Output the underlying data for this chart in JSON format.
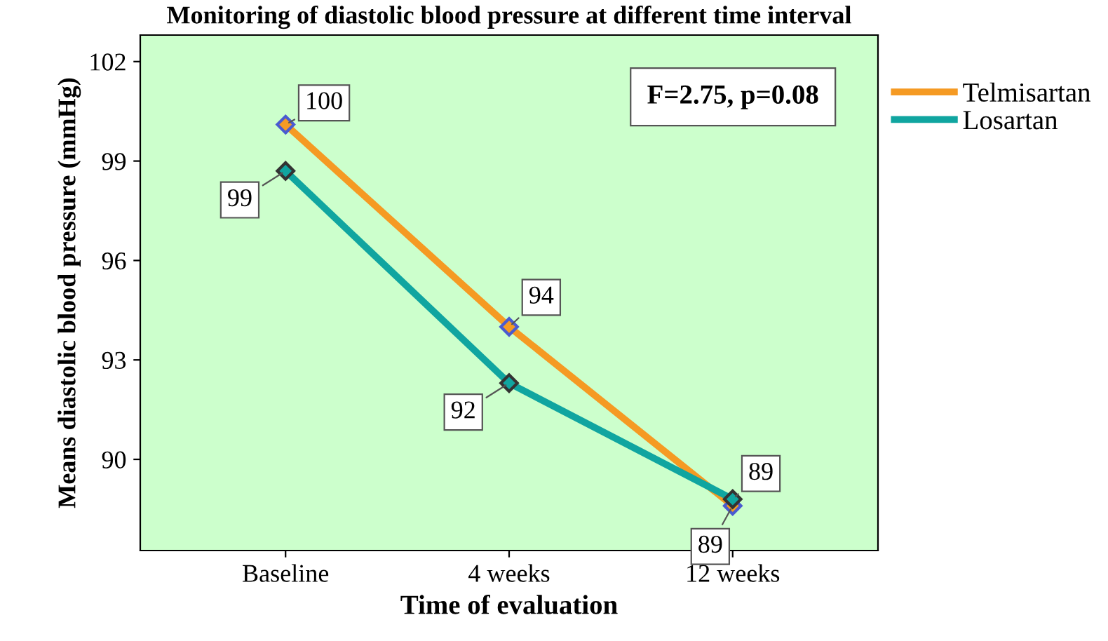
{
  "chart_data": {
    "type": "line",
    "title": "Monitoring of diastolic blood pressure at different time interval",
    "xlabel": "Time of evaluation",
    "ylabel": "Means diastolic blood pressure (mmHg)",
    "categories": [
      "Baseline",
      "4 weeks",
      "12 weeks"
    ],
    "series": [
      {
        "name": "Telmisartan",
        "color": "#f59a23",
        "values": [
          100.1,
          94.0,
          88.6
        ],
        "value_labels": [
          "100",
          "94",
          "89"
        ]
      },
      {
        "name": "Losartan",
        "color": "#10a5a0",
        "values": [
          98.7,
          92.3,
          88.8
        ],
        "value_labels": [
          "99",
          "92",
          "89"
        ]
      }
    ],
    "ylim": [
      87.25,
      102.8
    ],
    "yticks": [
      90,
      93,
      96,
      99,
      102
    ],
    "annotations": [
      "F=2.75, p=0.08"
    ],
    "marker": "diamond",
    "grid": false,
    "legend": "top right"
  }
}
